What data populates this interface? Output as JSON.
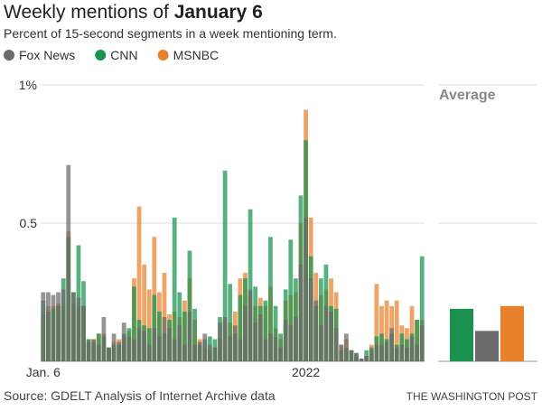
{
  "chart_data": {
    "type": "bar",
    "title": "Weekly mentions of",
    "title_highlight": "January 6",
    "subtitle": "Percent of 15-second segments in a week mentioning term.",
    "categories": [
      "Jan. 6",
      null,
      null,
      null,
      null,
      null,
      null,
      null,
      null,
      null,
      null,
      null,
      null,
      null,
      null,
      null,
      null,
      null,
      null,
      null,
      null,
      null,
      null,
      null,
      null,
      null,
      null,
      null,
      null,
      null,
      null,
      null,
      null,
      null,
      null,
      null,
      null,
      null,
      null,
      null,
      null,
      null,
      null,
      null,
      null,
      null,
      null,
      null,
      null,
      null,
      null,
      null,
      "2022",
      null,
      null,
      null,
      null,
      null,
      null,
      null,
      null,
      null,
      null,
      null,
      null,
      null,
      null,
      null,
      null,
      null,
      null,
      null,
      null,
      null,
      null,
      null
    ],
    "series": [
      {
        "name": "Fox News",
        "color": "#6b6b6b",
        "average": 0.11,
        "values": [
          0.25,
          0.25,
          0.24,
          0.25,
          0.26,
          0.71,
          0.25,
          0.23,
          0.2,
          0.07,
          0.08,
          0.06,
          0.16,
          0.05,
          0.1,
          0.07,
          0.14,
          0.09,
          0.08,
          0.12,
          0.11,
          0.06,
          0.12,
          0.09,
          0.16,
          0.12,
          0.08,
          0.13,
          0.06,
          0.18,
          0.06,
          0.07,
          0.1,
          0.06,
          0.05,
          0.14,
          0.16,
          0.09,
          0.13,
          0.08,
          0.2,
          0.26,
          0.14,
          0.17,
          0.08,
          0.1,
          0.09,
          0.05,
          0.15,
          0.13,
          0.16,
          0.35,
          0.52,
          0.3,
          0.22,
          0.13,
          0.2,
          0.18,
          0.12,
          0.06,
          0.1,
          0.04,
          0.03,
          0.01,
          0.02,
          0.04,
          0.06,
          0.06,
          0.07,
          0.12,
          0.05,
          0.06,
          0.05,
          0.09,
          0.06,
          0.13
        ]
      },
      {
        "name": "CNN",
        "color": "#1a934f",
        "average": 0.19,
        "values": [
          0.22,
          0.18,
          0.19,
          0.2,
          0.3,
          0.45,
          0.25,
          0.42,
          0.29,
          0.08,
          0.07,
          0.1,
          0.09,
          0.05,
          0.06,
          0.06,
          0.1,
          0.12,
          0.27,
          0.15,
          0.13,
          0.12,
          0.24,
          0.18,
          0.1,
          0.15,
          0.52,
          0.25,
          0.18,
          0.4,
          0.19,
          0.06,
          0.08,
          0.09,
          0.08,
          0.16,
          0.69,
          0.28,
          0.1,
          0.24,
          0.3,
          0.55,
          0.27,
          0.2,
          0.22,
          0.45,
          0.2,
          0.1,
          0.26,
          0.44,
          0.3,
          0.6,
          0.8,
          0.38,
          0.2,
          0.3,
          0.35,
          0.2,
          0.19,
          0.04,
          0.05,
          0.04,
          0.03,
          0.01,
          0.04,
          0.05,
          0.09,
          0.1,
          0.08,
          0.1,
          0.06,
          0.1,
          0.08,
          0.1,
          0.15,
          0.38
        ]
      },
      {
        "name": "MSNBC",
        "color": "#e8802c",
        "average": 0.2,
        "values": [
          0.17,
          0.2,
          0.2,
          0.21,
          0.2,
          0.47,
          0.21,
          0.2,
          0.2,
          0.08,
          0.08,
          0.1,
          0.1,
          0.05,
          0.07,
          0.08,
          0.09,
          0.11,
          0.3,
          0.56,
          0.35,
          0.26,
          0.45,
          0.25,
          0.32,
          0.17,
          0.18,
          0.16,
          0.22,
          0.3,
          0.15,
          0.08,
          0.05,
          0.04,
          0.05,
          0.08,
          0.15,
          0.14,
          0.18,
          0.3,
          0.32,
          0.25,
          0.2,
          0.23,
          0.2,
          0.27,
          0.12,
          0.08,
          0.22,
          0.24,
          0.25,
          0.5,
          0.91,
          0.52,
          0.32,
          0.24,
          0.26,
          0.3,
          0.25,
          0.06,
          0.08,
          0.04,
          0.02,
          0.01,
          0.02,
          0.06,
          0.28,
          0.2,
          0.22,
          0.2,
          0.22,
          0.13,
          0.12,
          0.2,
          0.15,
          0.15
        ]
      }
    ],
    "average_title": "Average",
    "ylim": [
      0,
      1
    ],
    "yticks": [
      0.5,
      {
        "value": 1,
        "label": "1%"
      }
    ],
    "grid": true,
    "source": "Source: GDELT Analysis of Internet Archive data",
    "credit": "THE WASHINGTON POST"
  }
}
